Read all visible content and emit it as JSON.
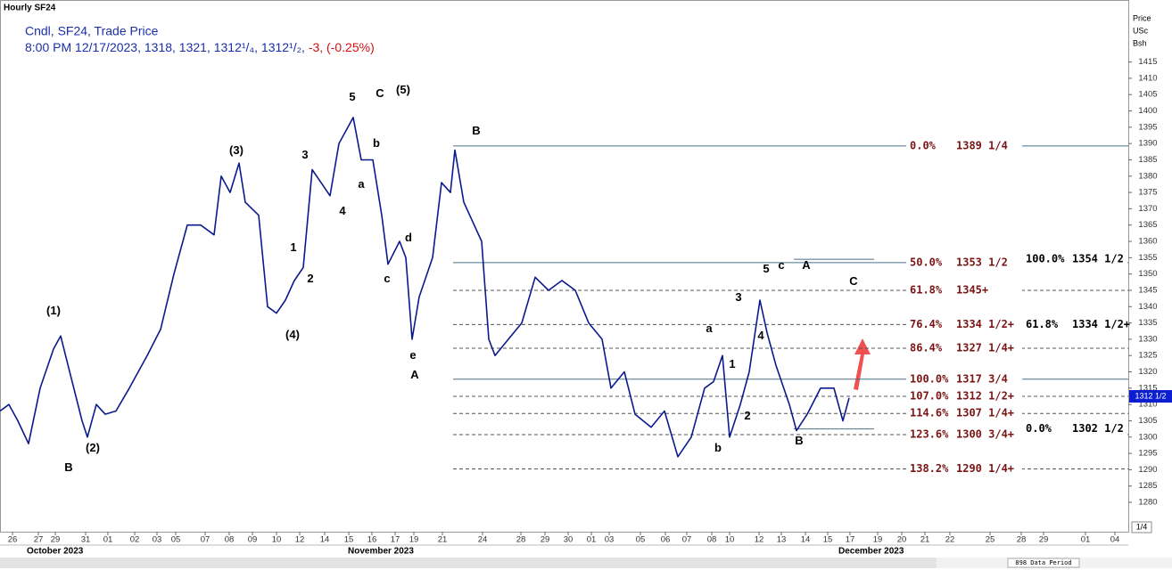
{
  "chart_data": {
    "type": "line",
    "title": "Hourly SF24",
    "subtitle": "Cndl, SF24, Trade Price",
    "header_values": "8:00 PM 12/17/2023, 1318, 1321, 1312¹/₄, 1312¹/₂,",
    "change": "-3, (-0.25%)",
    "y_axis_label": [
      "Price",
      "USc",
      "Bsh"
    ],
    "months": [
      {
        "label": "October 2023",
        "x": 3
      },
      {
        "label": "November 2023",
        "x": 39
      },
      {
        "label": "December 2023",
        "x": 94
      }
    ],
    "footer": "898 Data Period",
    "corner": "1/4",
    "last_price": 1312.5,
    "last_price_label": "1312 1/2",
    "xlim": [
      0,
      126.5
    ],
    "ylim": [
      1271,
      1434
    ],
    "grid": false,
    "color": "#0a1a8c",
    "xticks": [
      {
        "value": 1.4,
        "label": "26"
      },
      {
        "value": 4.3,
        "label": "27"
      },
      {
        "value": 6.2,
        "label": "29"
      },
      {
        "value": 9.6,
        "label": "31"
      },
      {
        "value": 12.1,
        "label": "01"
      },
      {
        "value": 15.1,
        "label": "02"
      },
      {
        "value": 17.6,
        "label": "03"
      },
      {
        "value": 19.7,
        "label": "05"
      },
      {
        "value": 23,
        "label": "07"
      },
      {
        "value": 25.7,
        "label": "08"
      },
      {
        "value": 28.3,
        "label": "09"
      },
      {
        "value": 31,
        "label": "10"
      },
      {
        "value": 33.6,
        "label": "12"
      },
      {
        "value": 36.4,
        "label": "14"
      },
      {
        "value": 39.1,
        "label": "15"
      },
      {
        "value": 41.7,
        "label": "16"
      },
      {
        "value": 44.3,
        "label": "17"
      },
      {
        "value": 46.4,
        "label": "19"
      },
      {
        "value": 49.6,
        "label": "21"
      },
      {
        "value": 54.1,
        "label": "24"
      },
      {
        "value": 58.4,
        "label": "28"
      },
      {
        "value": 61.1,
        "label": "29"
      },
      {
        "value": 63.7,
        "label": "30"
      },
      {
        "value": 66.3,
        "label": "01"
      },
      {
        "value": 68.3,
        "label": "03"
      },
      {
        "value": 71.8,
        "label": "05"
      },
      {
        "value": 74.6,
        "label": "06"
      },
      {
        "value": 77,
        "label": "07"
      },
      {
        "value": 79.8,
        "label": "08"
      },
      {
        "value": 81.8,
        "label": "10"
      },
      {
        "value": 85.1,
        "label": "12"
      },
      {
        "value": 87.6,
        "label": "13"
      },
      {
        "value": 90.3,
        "label": "14"
      },
      {
        "value": 92.8,
        "label": "15"
      },
      {
        "value": 95.3,
        "label": "17"
      },
      {
        "value": 98.4,
        "label": "19"
      },
      {
        "value": 101.1,
        "label": "20"
      },
      {
        "value": 103.7,
        "label": "21"
      },
      {
        "value": 106.5,
        "label": "22"
      },
      {
        "value": 111,
        "label": "25"
      },
      {
        "value": 114.5,
        "label": "28"
      },
      {
        "value": 117,
        "label": "29"
      },
      {
        "value": 121.7,
        "label": "01"
      },
      {
        "value": 125,
        "label": "04"
      }
    ],
    "yticks": [
      1280,
      1285,
      1290,
      1295,
      1300,
      1305,
      1310,
      1315,
      1320,
      1325,
      1330,
      1335,
      1340,
      1345,
      1350,
      1355,
      1360,
      1365,
      1370,
      1375,
      1380,
      1385,
      1390,
      1395,
      1400,
      1405,
      1410,
      1415
    ],
    "x": [
      0,
      1,
      2,
      3.2,
      4.5,
      6,
      6.8,
      8,
      9.2,
      9.8,
      10.8,
      11.8,
      13,
      14.5,
      16.5,
      18,
      19.5,
      21,
      22.5,
      24,
      24.8,
      25.8,
      26.8,
      27.5,
      29,
      30,
      31,
      32,
      33,
      34,
      35,
      36,
      37,
      38,
      39.6,
      40.5,
      41.8,
      42.8,
      43.5,
      44.8,
      45.5,
      46.2,
      47,
      48.5,
      49.5,
      50.5,
      51,
      52,
      54,
      54.8,
      55.5,
      57,
      58.5,
      60,
      61.5,
      63,
      64.5,
      66,
      67.5,
      68.5,
      70,
      71.2,
      73,
      74.5,
      76,
      77.5,
      79,
      80,
      81,
      81.8,
      83,
      84,
      85.2,
      86,
      87,
      88.5,
      89.3,
      90.5,
      92,
      93.5,
      94.5,
      95.2
    ],
    "series": [
      {
        "name": "SF24",
        "color": "#0a1a8c",
        "values": [
          1308,
          1310,
          1305,
          1298,
          1315,
          1327,
          1331,
          1318,
          1305,
          1300,
          1310,
          1307,
          1308,
          1315,
          1325,
          1333,
          1350,
          1365,
          1365,
          1362,
          1380,
          1375,
          1384,
          1372,
          1368,
          1340,
          1338,
          1342,
          1348,
          1352,
          1382,
          1378,
          1374,
          1390,
          1398,
          1385,
          1385,
          1368,
          1353,
          1360,
          1355,
          1330,
          1343,
          1355,
          1378,
          1375,
          1388,
          1372,
          1360,
          1330,
          1325,
          1330,
          1335,
          1349,
          1345,
          1348,
          1345,
          1335,
          1330,
          1315,
          1320,
          1307,
          1303,
          1308,
          1294,
          1300,
          1315,
          1317,
          1325,
          1300,
          1310,
          1320,
          1342,
          1332,
          1322,
          1310,
          1302,
          1307,
          1315,
          1315,
          1305,
          1312
        ]
      }
    ],
    "levels": [
      {
        "pct": "0.0%",
        "price": 1389.25,
        "price_label": "1389 1/4",
        "dashed": false
      },
      {
        "pct": "50.0%",
        "price": 1353.5,
        "price_label": "1353 1/2",
        "dashed": false
      },
      {
        "pct": "61.8%",
        "price": 1345,
        "price_label": "1345+",
        "dashed": true
      },
      {
        "pct": "76.4%",
        "price": 1334.5,
        "price_label": "1334 1/2+",
        "dashed": true
      },
      {
        "pct": "86.4%",
        "price": 1327.25,
        "price_label": "1327 1/4+",
        "dashed": true
      },
      {
        "pct": "100.0%",
        "price": 1317.75,
        "price_label": "1317 3/4",
        "dashed": false
      },
      {
        "pct": "107.0%",
        "price": 1312.5,
        "price_label": "1312 1/2+",
        "dashed": true
      },
      {
        "pct": "114.6%",
        "price": 1307.25,
        "price_label": "1307 1/4+",
        "dashed": true
      },
      {
        "pct": "123.6%",
        "price": 1300.75,
        "price_label": "1300 3/4+",
        "dashed": true
      },
      {
        "pct": "138.2%",
        "price": 1290.25,
        "price_label": "1290 1/4+",
        "dashed": true
      }
    ],
    "levels_start": 50.8,
    "extra_levels": [
      {
        "pct": "100.0%",
        "price": 1354.5,
        "price_label": "1354 1/2",
        "x0": 89,
        "x1": 98
      },
      {
        "pct": "61.8%",
        "price": 1334.5,
        "price_label": "1334 1/2+"
      },
      {
        "pct": "0.0%",
        "price": 1302.5,
        "price_label": "1302 1/2",
        "x0": 89,
        "x1": 98
      }
    ],
    "waves": [
      {
        "text": "(1)",
        "x": 6,
        "y": 1338.6
      },
      {
        "text": "(2)",
        "x": 10.4,
        "y": 1296.5
      },
      {
        "text": "B",
        "x": 7.7,
        "y": 1290.5
      },
      {
        "text": "(3)",
        "x": 26.5,
        "y": 1387.7
      },
      {
        "text": "(4)",
        "x": 32.8,
        "y": 1331.2
      },
      {
        "text": "1",
        "x": 32.9,
        "y": 1358
      },
      {
        "text": "2",
        "x": 34.8,
        "y": 1348.4
      },
      {
        "text": "3",
        "x": 34.2,
        "y": 1386.3
      },
      {
        "text": "4",
        "x": 38.4,
        "y": 1369.1
      },
      {
        "text": "5",
        "x": 39.5,
        "y": 1404.1
      },
      {
        "text": "C",
        "x": 42.6,
        "y": 1405.2
      },
      {
        "text": "(5)",
        "x": 45.2,
        "y": 1406.3
      },
      {
        "text": "b",
        "x": 42.2,
        "y": 1389.9
      },
      {
        "text": "a",
        "x": 40.5,
        "y": 1377.3
      },
      {
        "text": "d",
        "x": 45.8,
        "y": 1361
      },
      {
        "text": "c",
        "x": 43.4,
        "y": 1348.4
      },
      {
        "text": "e",
        "x": 46.3,
        "y": 1324.9
      },
      {
        "text": "A",
        "x": 46.5,
        "y": 1318.9
      },
      {
        "text": "B",
        "x": 53.4,
        "y": 1393.7
      },
      {
        "text": "a",
        "x": 79.5,
        "y": 1333.1
      },
      {
        "text": "b",
        "x": 80.5,
        "y": 1296.5
      },
      {
        "text": "1",
        "x": 82.1,
        "y": 1322.2
      },
      {
        "text": "2",
        "x": 83.8,
        "y": 1306.4
      },
      {
        "text": "3",
        "x": 82.8,
        "y": 1342.7
      },
      {
        "text": "4",
        "x": 85.3,
        "y": 1330.9
      },
      {
        "text": "5",
        "x": 85.9,
        "y": 1351.4
      },
      {
        "text": "c",
        "x": 87.6,
        "y": 1352.5
      },
      {
        "text": "A",
        "x": 90.4,
        "y": 1352.5
      },
      {
        "text": "C",
        "x": 95.7,
        "y": 1347.6
      },
      {
        "text": "B",
        "x": 89.6,
        "y": 1298.7
      }
    ]
  }
}
